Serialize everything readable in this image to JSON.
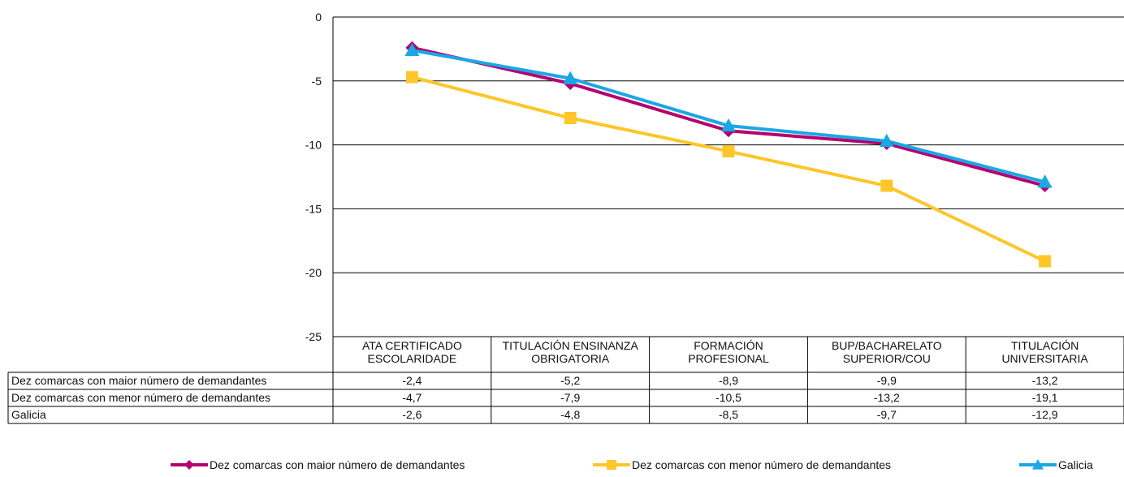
{
  "chart_data": {
    "type": "line",
    "categories": [
      [
        "ATA CERTIFICADO",
        "ESCOLARIDADE"
      ],
      [
        "TITULACIÓN ENSINANZA",
        "OBRIGATORIA"
      ],
      [
        "FORMACIÓN",
        "PROFESIONAL"
      ],
      [
        "BUP/BACHARELATO",
        "SUPERIOR/COU"
      ],
      [
        "TITULACIÓN",
        "UNIVERSITARIA"
      ]
    ],
    "series": [
      {
        "name": "Dez comarcas con maior número de demandantes",
        "values": [
          -2.4,
          -5.2,
          -8.9,
          -9.9,
          -13.2
        ],
        "labels": [
          "-2,4",
          "-5,2",
          "-8,9",
          "-9,9",
          "-13,2"
        ],
        "color": "#b5006e",
        "marker": "diamond"
      },
      {
        "name": "Dez comarcas con menor número de demandantes",
        "values": [
          -4.7,
          -7.9,
          -10.5,
          -13.2,
          -19.1
        ],
        "labels": [
          "-4,7",
          "-7,9",
          "-10,5",
          "-13,2",
          "-19,1"
        ],
        "color": "#ffc629",
        "marker": "square"
      },
      {
        "name": "Galicia",
        "values": [
          -2.6,
          -4.8,
          -8.5,
          -9.7,
          -12.9
        ],
        "labels": [
          "-2,6",
          "-4,8",
          "-8,5",
          "-9,7",
          "-12,9"
        ],
        "color": "#1aa7e6",
        "marker": "triangle"
      }
    ],
    "yticks": [
      0,
      -5,
      -10,
      -15,
      -20,
      -25
    ],
    "ylim": [
      -25,
      0
    ],
    "grid": true,
    "legend": "bottom",
    "data_table": true
  }
}
